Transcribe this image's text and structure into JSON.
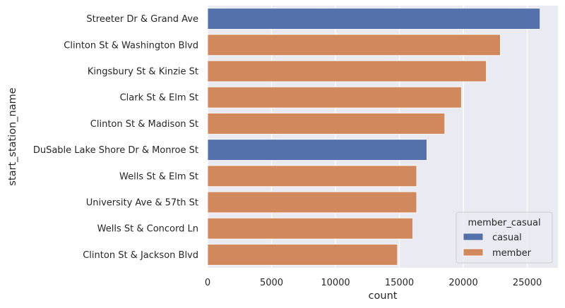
{
  "chart_data": {
    "type": "bar",
    "orientation": "horizontal",
    "xlabel": "count",
    "ylabel": "start_station_name",
    "xlim": [
      0,
      27400
    ],
    "xticks": [
      0,
      5000,
      10000,
      15000,
      20000,
      25000
    ],
    "grid": true,
    "legend_title": "member_casual",
    "legend_position": "lower-right",
    "colors": {
      "casual": "#5471ab",
      "member": "#d1885c",
      "plot_background": "#eaeaf2",
      "grid": "#ffffff"
    },
    "legend": [
      {
        "name": "casual"
      },
      {
        "name": "member"
      }
    ],
    "categories": [
      "Streeter Dr & Grand Ave",
      "Clinton St & Washington Blvd",
      "Kingsbury St & Kinzie St",
      "Clark St & Elm St",
      "Clinton St & Madison St",
      "DuSable Lake Shore Dr & Monroe St",
      "Wells St & Elm St",
      "University Ave & 57th St",
      "Wells St & Concord Ln",
      "Clinton St & Jackson Blvd"
    ],
    "bars": [
      {
        "category": "Streeter Dr & Grand Ave",
        "group": "casual",
        "value": 26000
      },
      {
        "category": "Clinton St & Washington Blvd",
        "group": "member",
        "value": 22900
      },
      {
        "category": "Kingsbury St & Kinzie St",
        "group": "member",
        "value": 21800
      },
      {
        "category": "Clark St & Elm St",
        "group": "member",
        "value": 19850
      },
      {
        "category": "Clinton St & Madison St",
        "group": "member",
        "value": 18550
      },
      {
        "category": "DuSable Lake Shore Dr & Monroe St",
        "group": "casual",
        "value": 17150
      },
      {
        "category": "Wells St & Elm St",
        "group": "member",
        "value": 16350
      },
      {
        "category": "University Ave & 57th St",
        "group": "member",
        "value": 16350
      },
      {
        "category": "Wells St & Concord Ln",
        "group": "member",
        "value": 16050
      },
      {
        "category": "Clinton St & Jackson Blvd",
        "group": "member",
        "value": 14850
      }
    ]
  }
}
